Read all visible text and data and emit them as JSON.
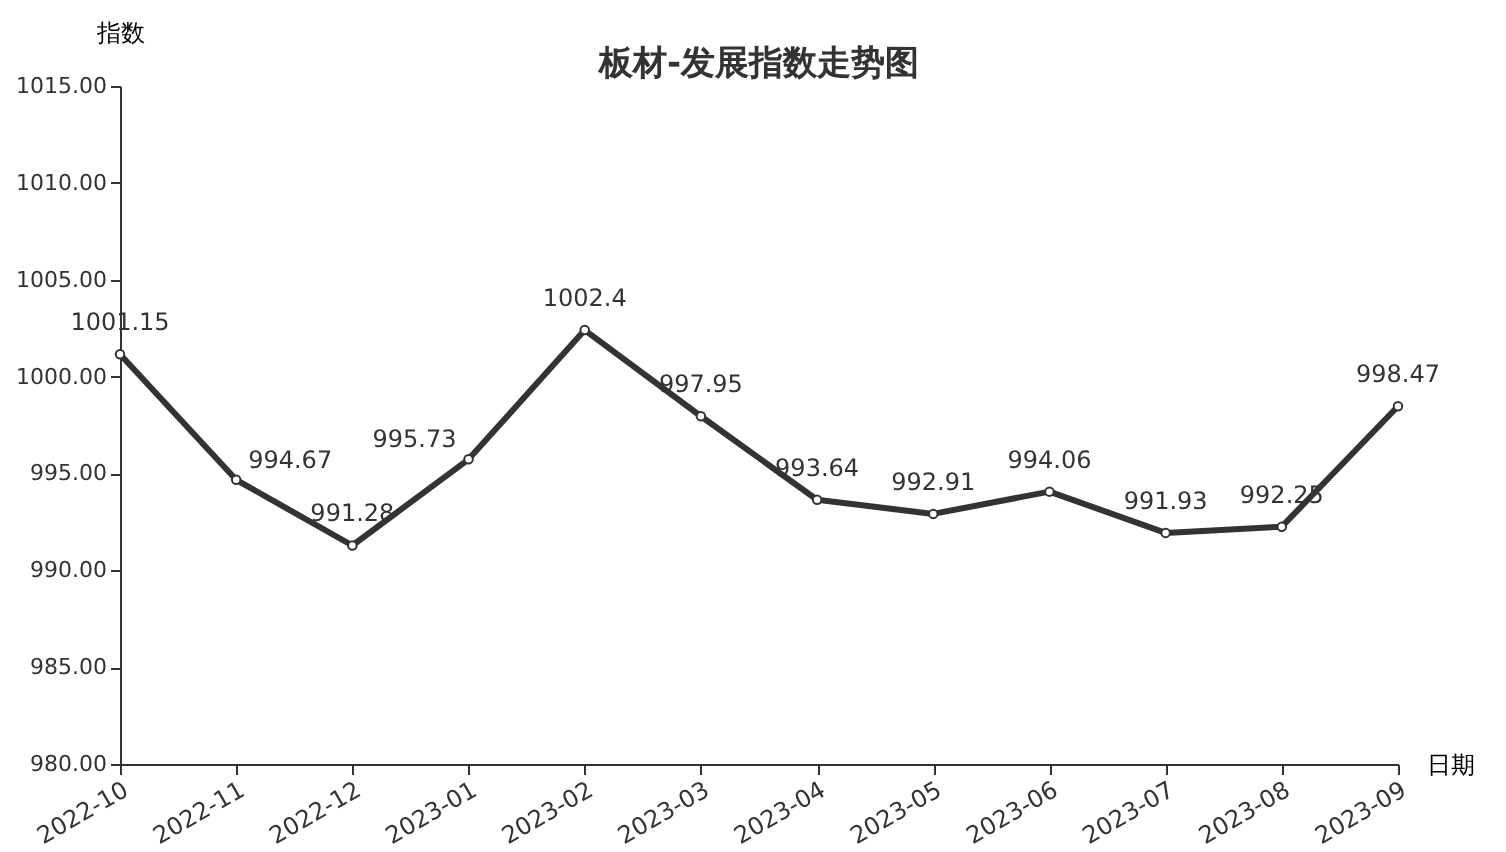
{
  "chart_data": {
    "type": "line",
    "title": "板材-发展指数走势图",
    "xlabel": "日期",
    "ylabel": "指数",
    "categories": [
      "2022-10",
      "2022-11",
      "2022-12",
      "2023-01",
      "2023-02",
      "2023-03",
      "2023-04",
      "2023-05",
      "2023-06",
      "2023-07",
      "2023-08",
      "2023-09"
    ],
    "series": [
      {
        "color": "#333333",
        "values": [
          1001.15,
          994.67,
          991.28,
          995.73,
          1002.4,
          997.95,
          993.64,
          992.91,
          994.06,
          991.93,
          992.25,
          998.47
        ]
      }
    ],
    "ylim": [
      980,
      1015
    ],
    "yticks": [
      {
        "value": 980,
        "label": "980.00"
      },
      {
        "value": 985,
        "label": "985.00"
      },
      {
        "value": 990,
        "label": "990.00"
      },
      {
        "value": 995,
        "label": "995.00"
      },
      {
        "value": 1000,
        "label": "1000.00"
      },
      {
        "value": 1005,
        "label": "1005.00"
      },
      {
        "value": 1010,
        "label": "1010.00"
      },
      {
        "value": 1015,
        "label": "1015.00"
      }
    ],
    "data_labels": true,
    "marker": "circle",
    "line_style": "solid",
    "grid": false,
    "legend": false
  }
}
